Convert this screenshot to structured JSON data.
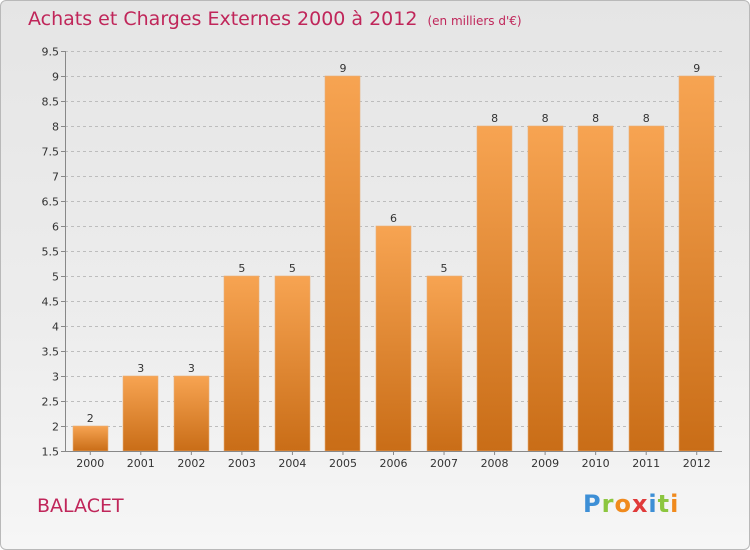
{
  "title": "Achats et Charges Externes 2000 à 2012",
  "subtitle": "(en milliers d'€)",
  "commune": "BALACET",
  "logo": {
    "letters": [
      "P",
      "r",
      "o",
      "x",
      "i",
      "t",
      "i"
    ],
    "colors": [
      "#3d8fd6",
      "#8cc63f",
      "#f08a1d",
      "#e03a3a",
      "#3d8fd6",
      "#8cc63f",
      "#f08a1d"
    ]
  },
  "colors": {
    "title": "#c0265a",
    "bar_top": "#f7a452",
    "bar_bottom": "#c96d17",
    "grid": "#bdbdbd"
  },
  "chart_data": {
    "type": "bar",
    "categories": [
      "2000",
      "2001",
      "2002",
      "2003",
      "2004",
      "2005",
      "2006",
      "2007",
      "2008",
      "2009",
      "2010",
      "2011",
      "2012"
    ],
    "values": [
      2,
      3,
      3,
      5,
      5,
      9,
      6,
      5,
      8,
      8,
      8,
      8,
      9
    ],
    "ylim": [
      1.5,
      9.5
    ],
    "yticks": [
      "1.5",
      "2",
      "2.5",
      "3",
      "3.5",
      "4",
      "4.5",
      "5",
      "5.5",
      "6",
      "6.5",
      "7",
      "7.5",
      "8",
      "8.5",
      "9",
      "9.5"
    ],
    "grid": true,
    "xlabel": "",
    "ylabel": ""
  }
}
